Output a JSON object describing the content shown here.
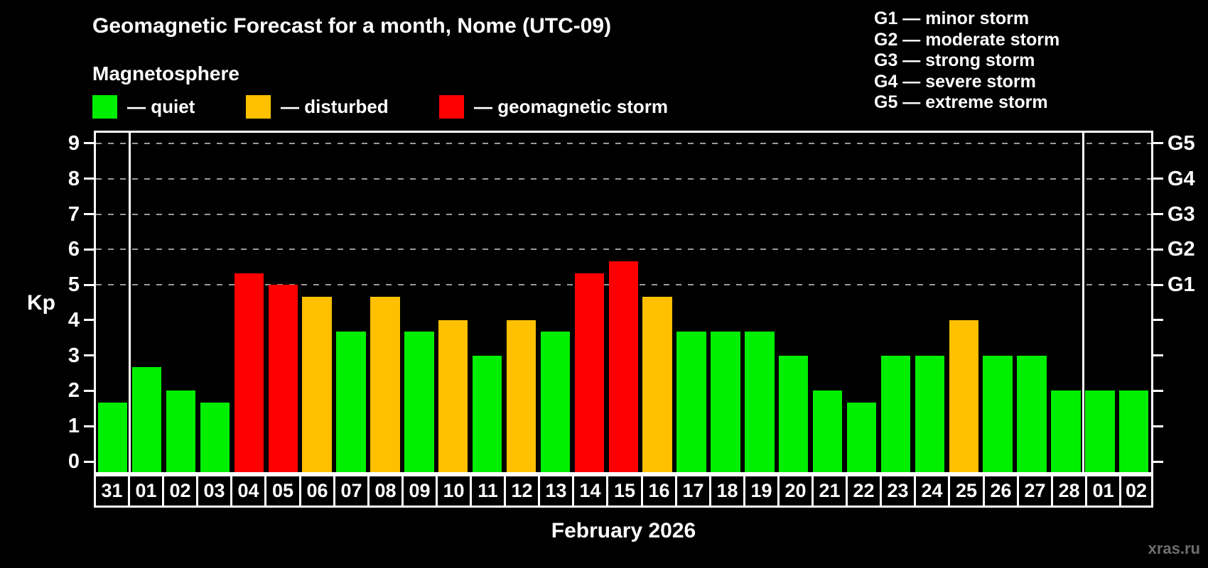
{
  "header": {
    "title": "Geomagnetic Forecast for a month, Nome (UTC-09)"
  },
  "magnetosphere_legend": {
    "title": "Magnetosphere",
    "items": [
      {
        "key": "quiet",
        "label": "— quiet",
        "color": "#00ee00"
      },
      {
        "key": "disturbed",
        "label": "— disturbed",
        "color": "#ffc000"
      },
      {
        "key": "storm",
        "label": "— geomagnetic storm",
        "color": "#ff0000"
      }
    ]
  },
  "g_scale_legend": {
    "items": [
      "G1 — minor storm",
      "G2 — moderate storm",
      "G3 — strong storm",
      "G4 — severe storm",
      "G5 — extreme storm"
    ]
  },
  "watermark": "xras.ru",
  "chart_data": {
    "type": "bar",
    "title": "Geomagnetic Forecast for a month, Nome (UTC-09)",
    "xlabel": "February 2026",
    "ylabel": "Kp",
    "ylim": [
      -0.36,
      9.36
    ],
    "yticks": [
      0,
      1,
      2,
      3,
      4,
      5,
      6,
      7,
      8,
      9
    ],
    "gridlines_at": [
      5,
      6,
      7,
      8,
      9
    ],
    "grid": "dashed",
    "right_axis_labels": {
      "5": "G1",
      "6": "G2",
      "7": "G3",
      "8": "G4",
      "9": "G5"
    },
    "legend_position": "top",
    "categories": [
      "31",
      "01",
      "02",
      "03",
      "04",
      "05",
      "06",
      "07",
      "08",
      "09",
      "10",
      "11",
      "12",
      "13",
      "14",
      "15",
      "16",
      "17",
      "18",
      "19",
      "20",
      "21",
      "22",
      "23",
      "24",
      "25",
      "26",
      "27",
      "28",
      "01",
      "02"
    ],
    "values": [
      1.67,
      2.67,
      2.0,
      1.67,
      5.33,
      5.0,
      4.67,
      3.67,
      4.67,
      3.67,
      4.0,
      3.0,
      4.0,
      3.67,
      5.33,
      5.67,
      4.67,
      3.67,
      3.67,
      3.67,
      3.0,
      2.0,
      1.67,
      3.0,
      3.0,
      4.0,
      3.0,
      3.0,
      2.0,
      2.0,
      2.0
    ],
    "statuses": [
      "quiet",
      "quiet",
      "quiet",
      "quiet",
      "storm",
      "storm",
      "disturbed",
      "quiet",
      "disturbed",
      "quiet",
      "disturbed",
      "quiet",
      "disturbed",
      "quiet",
      "storm",
      "storm",
      "disturbed",
      "quiet",
      "quiet",
      "quiet",
      "quiet",
      "quiet",
      "quiet",
      "quiet",
      "quiet",
      "disturbed",
      "quiet",
      "quiet",
      "quiet",
      "quiet",
      "quiet"
    ],
    "month_boundaries_after_index": [
      0,
      28
    ],
    "colors": {
      "quiet": "#00ee00",
      "disturbed": "#ffc000",
      "storm": "#ff0000"
    },
    "grid_color": "#9a9a9a",
    "axis_color": "#ffffff",
    "background": "#000000"
  }
}
